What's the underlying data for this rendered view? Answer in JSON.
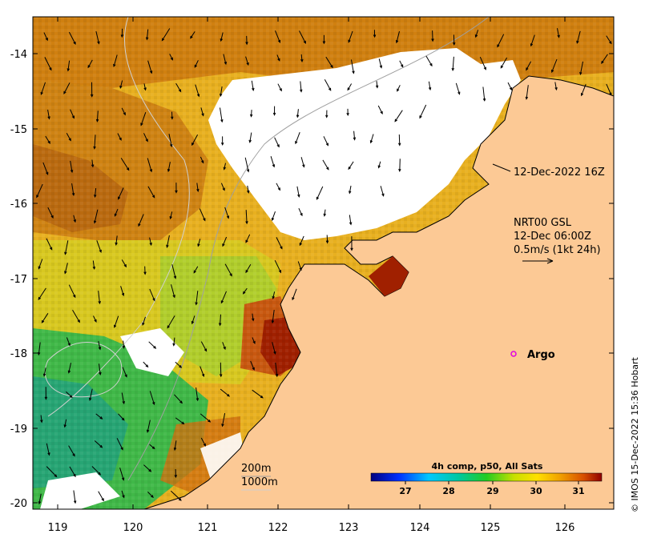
{
  "x_ticks": [
    "119",
    "120",
    "121",
    "122",
    "123",
    "124",
    "125",
    "126"
  ],
  "y_ticks": [
    "-14",
    "-15",
    "-16",
    "-17",
    "-18",
    "-19",
    "-20"
  ],
  "annotations": {
    "swath_time": "12-Dec-2022 16Z",
    "current_source": "NRT00 GSL",
    "current_time": "12-Dec 06:00Z",
    "current_scale": "0.5m/s (1kt 24h)",
    "contour_200": "200m",
    "contour_1000": "1000m",
    "argo_label": "Argo"
  },
  "colorbar": {
    "title": "4h comp, p50, All Sats",
    "ticks": [
      "27",
      "28",
      "29",
      "30",
      "31"
    ]
  },
  "credit": "© IMOS 15-Dec-2022 15:36 Hobart",
  "colors": {
    "land": "#fcc995",
    "cloud": "#ffffff",
    "argo": "#e000e0",
    "contour": "#a0a0a0"
  }
}
